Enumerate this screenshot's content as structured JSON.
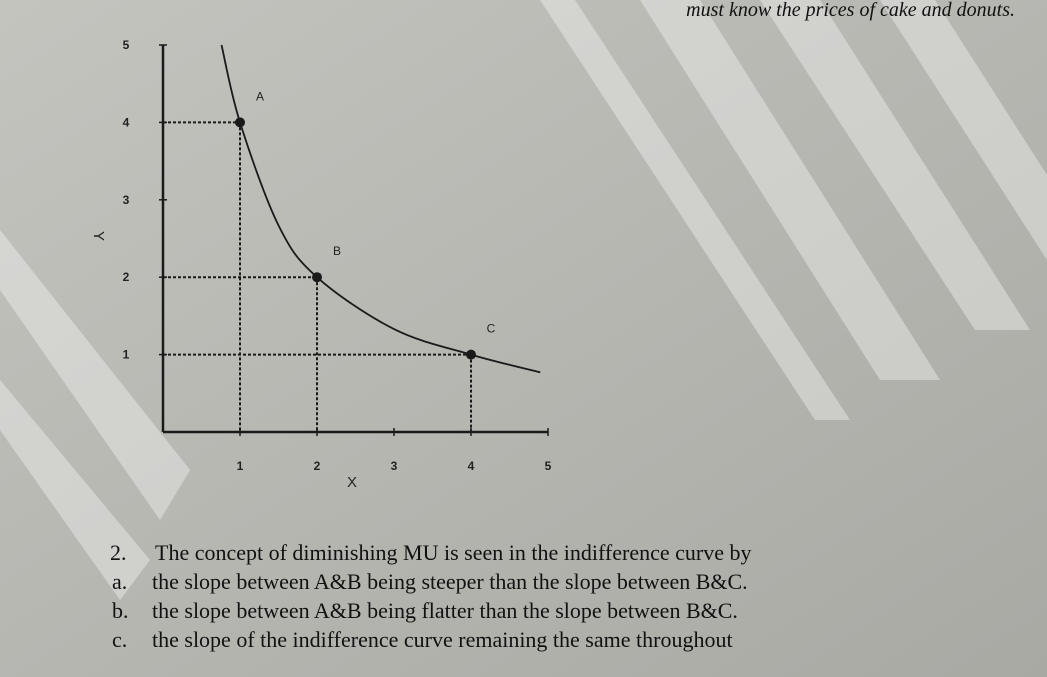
{
  "header_fragment": "must know the prices of cake and donuts.",
  "chart_data": {
    "type": "line",
    "x_label": "X",
    "y_label": "Y",
    "xlim": [
      0,
      5
    ],
    "ylim": [
      0,
      5
    ],
    "xticks": [
      1,
      2,
      3,
      4,
      5
    ],
    "yticks": [
      1,
      2,
      3,
      4,
      5
    ],
    "curve": {
      "x": [
        0.76,
        1,
        1.5,
        2,
        3,
        4,
        4.9
      ],
      "y": [
        5,
        4,
        2.67,
        2,
        1.33,
        1,
        0.77
      ]
    },
    "points": [
      {
        "label": "A",
        "x": 1,
        "y": 4
      },
      {
        "label": "B",
        "x": 2,
        "y": 2
      },
      {
        "label": "C",
        "x": 4,
        "y": 1
      }
    ],
    "color": "#1a1a1a"
  },
  "question": {
    "number": "2.",
    "stem": "The concept of diminishing MU is seen in the indifference curve by",
    "options": [
      {
        "letter": "a.",
        "text": "the slope between A&B being steeper than the slope between B&C."
      },
      {
        "letter": "b.",
        "text": "the slope between A&B being flatter than the slope between B&C."
      },
      {
        "letter": "c.",
        "text": "the slope of the indifference curve remaining the same throughout"
      }
    ]
  }
}
